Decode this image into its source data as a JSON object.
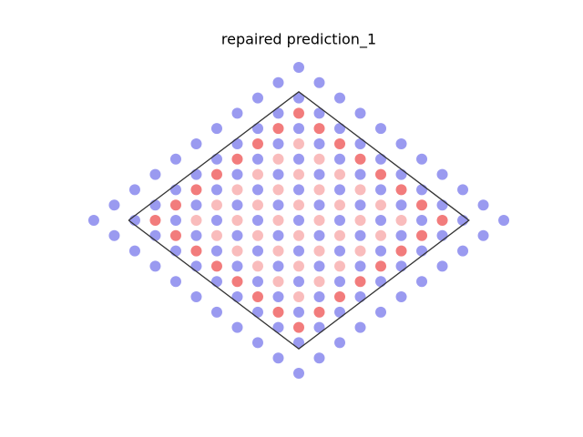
{
  "chart_data": {
    "type": "scatter",
    "title": "repaired prediction_1",
    "xlim": [
      -11.02,
      11.02
    ],
    "ylim": [
      -10.95,
      10.95
    ],
    "series": [
      {
        "color": "#9a9af0",
        "x": [
          0,
          -1,
          1,
          -2,
          0,
          2,
          -3,
          -1,
          1,
          3,
          -4,
          -2,
          0,
          2,
          4,
          -5,
          -3,
          -1,
          1,
          3,
          5,
          -6,
          -4,
          -2,
          0,
          2,
          4,
          6,
          -7,
          -5,
          -3,
          -1,
          1,
          3,
          5,
          7,
          -8,
          -6,
          -4,
          -2,
          0,
          2,
          4,
          6,
          8,
          -9,
          -7,
          -5,
          -3,
          -1,
          1,
          3,
          5,
          7,
          9,
          -10,
          -8,
          -6,
          -4,
          -2,
          0,
          2,
          4,
          6,
          8,
          10,
          -9,
          -7,
          -5,
          -3,
          -1,
          1,
          3,
          5,
          7,
          9,
          -8,
          -6,
          -4,
          -2,
          0,
          2,
          4,
          6,
          8,
          -7,
          -5,
          -3,
          -1,
          1,
          3,
          5,
          7,
          -6,
          -4,
          -2,
          0,
          2,
          4,
          6,
          -5,
          -3,
          -1,
          1,
          3,
          5,
          -4,
          -2,
          0,
          2,
          4,
          -3,
          -1,
          1,
          3,
          -2,
          0,
          2,
          -1,
          1,
          0
        ],
        "values": [
          10,
          9,
          9,
          8,
          8,
          8,
          7,
          7,
          7,
          7,
          6,
          6,
          6,
          6,
          6,
          5,
          5,
          5,
          5,
          5,
          5,
          4,
          4,
          4,
          4,
          4,
          4,
          4,
          3,
          3,
          3,
          3,
          3,
          3,
          3,
          3,
          2,
          2,
          2,
          2,
          2,
          2,
          2,
          2,
          2,
          1,
          1,
          1,
          1,
          1,
          1,
          1,
          1,
          1,
          1,
          0,
          0,
          0,
          0,
          0,
          0,
          0,
          0,
          0,
          0,
          0,
          -1,
          -1,
          -1,
          -1,
          -1,
          -1,
          -1,
          -1,
          -1,
          -1,
          -2,
          -2,
          -2,
          -2,
          -2,
          -2,
          -2,
          -2,
          -2,
          -3,
          -3,
          -3,
          -3,
          -3,
          -3,
          -3,
          -3,
          -4,
          -4,
          -4,
          -4,
          -4,
          -4,
          -4,
          -5,
          -5,
          -5,
          -5,
          -5,
          -5,
          -6,
          -6,
          -6,
          -6,
          -6,
          -7,
          -7,
          -7,
          -7,
          -8,
          -8,
          -8,
          -9,
          -9,
          -10
        ]
      },
      {
        "color": "#f9bcbc",
        "x": [
          0,
          -1,
          1,
          -2,
          0,
          2,
          -3,
          -1,
          1,
          3,
          -4,
          -2,
          0,
          2,
          4,
          -5,
          -3,
          -1,
          1,
          3,
          5,
          -4,
          -2,
          0,
          2,
          4,
          -3,
          -1,
          1,
          3,
          -2,
          0,
          2,
          -1,
          1,
          0
        ],
        "values": [
          5,
          4,
          4,
          3,
          3,
          3,
          2,
          2,
          2,
          2,
          1,
          1,
          1,
          1,
          1,
          0,
          0,
          0,
          0,
          0,
          0,
          -1,
          -1,
          -1,
          -1,
          -1,
          -2,
          -2,
          -2,
          -2,
          -3,
          -3,
          -3,
          -4,
          -4,
          -5
        ]
      },
      {
        "color": "#f27c7c",
        "x": [
          0,
          -1,
          1,
          -2,
          2,
          -3,
          3,
          -4,
          4,
          -5,
          5,
          -6,
          6,
          -7,
          7,
          -6,
          6,
          -5,
          5,
          -4,
          4,
          -3,
          3,
          -2,
          2,
          -1,
          1,
          0
        ],
        "values": [
          7,
          6,
          6,
          5,
          5,
          4,
          4,
          3,
          3,
          2,
          2,
          1,
          1,
          0,
          0,
          -1,
          -1,
          -2,
          -2,
          -3,
          -3,
          -4,
          -4,
          -5,
          -5,
          -6,
          -6,
          -7
        ]
      }
    ],
    "outline": {
      "color": "#333333",
      "x": [
        -8.3,
        0,
        8.3,
        0,
        -8.3
      ],
      "y": [
        0,
        8.4,
        0,
        -8.4,
        0
      ]
    }
  }
}
